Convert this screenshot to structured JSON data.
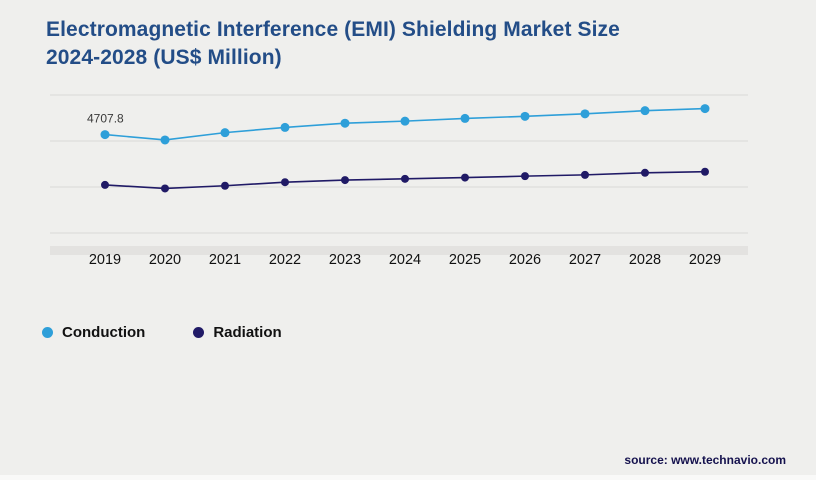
{
  "title": {
    "line1": "Electromagnetic Interference (EMI) Shielding Market Size",
    "line2": "2024-2028 (US$ Million)"
  },
  "source": "source: www.technavio.com",
  "chart_data": {
    "type": "line",
    "title": "Electromagnetic Interference (EMI) Shielding Market Size 2024-2028 (US$ Million)",
    "xlabel": "",
    "ylabel": "US$ Million",
    "categories": [
      "2019",
      "2020",
      "2021",
      "2022",
      "2023",
      "2024",
      "2025",
      "2026",
      "2027",
      "2028",
      "2029"
    ],
    "series": [
      {
        "name": "Conduction",
        "color": "#2e9fd9",
        "marker_radius": 4.5,
        "values": [
          4707.8,
          4450,
          4800,
          5050,
          5250,
          5350,
          5480,
          5580,
          5700,
          5850,
          5950
        ]
      },
      {
        "name": "Radiation",
        "color": "#201a66",
        "marker_radius": 4,
        "values": [
          2300,
          2130,
          2260,
          2430,
          2530,
          2590,
          2650,
          2720,
          2780,
          2880,
          2930
        ]
      }
    ],
    "ylim": [
      0,
      6600
    ],
    "gridline_count": 4,
    "grid": "horizontal",
    "legend_position": "bottom-left",
    "annotations": [
      {
        "series": "Conduction",
        "series_index": 0,
        "index": 0,
        "text": "4707.8"
      }
    ]
  }
}
